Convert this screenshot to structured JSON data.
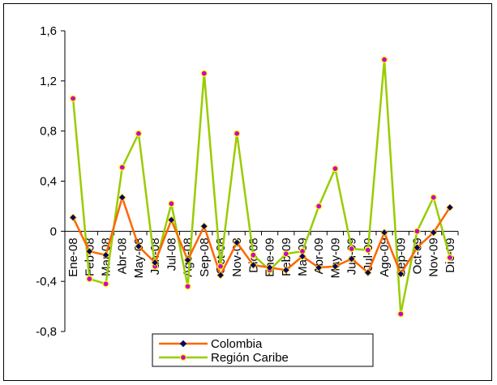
{
  "chart_data": {
    "type": "line",
    "categories": [
      "Ene-08",
      "Feb-08",
      "Mar-08",
      "Abr-08",
      "May-08",
      "Jun-08",
      "Jul-08",
      "Ago-08",
      "Sep-08",
      "Oct-08",
      "Nov-08",
      "Dic-08",
      "Ene-09",
      "Feb-09",
      "Mar-09",
      "Abr-09",
      "May-09",
      "Jun-09",
      "Jul-09",
      "Ago-09",
      "Sep-09",
      "Oct-09",
      "Nov-09",
      "Dic-09"
    ],
    "ylim": [
      -0.8,
      1.6
    ],
    "yticks": [
      "-0,8",
      "-0,4",
      "0",
      "0,4",
      "0,8",
      "1,2",
      "1,6"
    ],
    "ytick_values": [
      -0.8,
      -0.4,
      0,
      0.4,
      0.8,
      1.2,
      1.6
    ],
    "grid": false,
    "legend_position": "bottom-center",
    "series": [
      {
        "name": "Colombia",
        "color": "#ff6600",
        "marker_color": "#000066",
        "values": [
          0.11,
          -0.16,
          -0.19,
          0.27,
          -0.12,
          -0.25,
          0.09,
          -0.23,
          0.04,
          -0.35,
          -0.09,
          -0.27,
          -0.29,
          -0.31,
          -0.2,
          -0.29,
          -0.28,
          -0.22,
          -0.33,
          -0.01,
          -0.34,
          -0.13,
          -0.01,
          0.19
        ]
      },
      {
        "name": "Región Caribe",
        "color": "#99cc00",
        "marker_color": "#cc00cc",
        "values": [
          1.06,
          -0.38,
          -0.42,
          0.51,
          0.78,
          -0.28,
          0.22,
          -0.44,
          1.26,
          -0.28,
          0.78,
          -0.19,
          -0.31,
          -0.18,
          -0.16,
          0.2,
          0.5,
          -0.14,
          -0.15,
          1.37,
          -0.66,
          0.0,
          0.27,
          -0.21
        ]
      }
    ]
  }
}
